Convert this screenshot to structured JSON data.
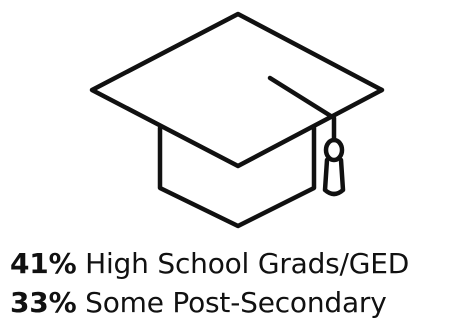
{
  "icon": "graduation-cap-icon",
  "colors": {
    "stroke": "#111111",
    "text": "#111111",
    "background": "#ffffff"
  },
  "stats": [
    {
      "value": "41%",
      "label": " High School Grads/GED"
    },
    {
      "value": "33%",
      "label": " Some Post-Secondary"
    }
  ]
}
